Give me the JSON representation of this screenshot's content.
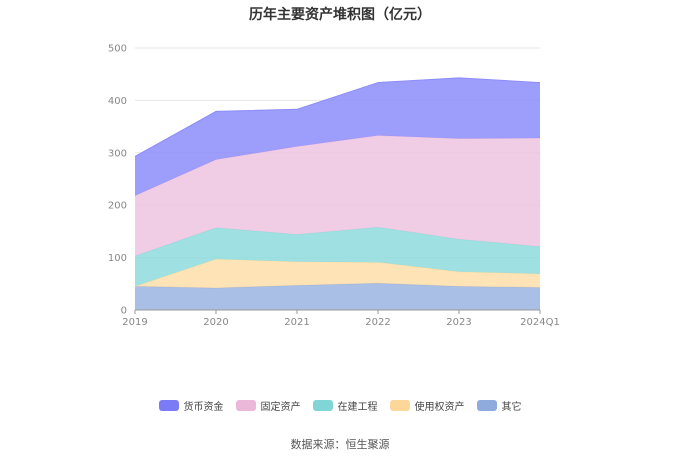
{
  "title": "历年主要资产堆积图（亿元）",
  "source": "数据来源：恒生聚源",
  "chart_data": {
    "type": "area",
    "stacked": true,
    "x": [
      "2019",
      "2020",
      "2021",
      "2022",
      "2023",
      "2024Q1"
    ],
    "ylim": [
      0,
      500
    ],
    "yticks": [
      0,
      100,
      200,
      300,
      400,
      500
    ],
    "grid": true,
    "legend_position": "bottom",
    "series": [
      {
        "name": "其它",
        "color": "#9BB4E0",
        "values": [
          45,
          42,
          47,
          51,
          45,
          43
        ]
      },
      {
        "name": "使用权资产",
        "color": "#FDDEA8",
        "values": [
          0,
          55,
          45,
          40,
          28,
          26
        ]
      },
      {
        "name": "在建工程",
        "color": "#8EDCDD",
        "values": [
          58,
          60,
          52,
          67,
          62,
          52
        ]
      },
      {
        "name": "固定资产",
        "color": "#EEC4E0",
        "values": [
          115,
          130,
          168,
          175,
          192,
          207
        ]
      },
      {
        "name": "货币资金",
        "color": "#8C8CFA",
        "values": [
          75,
          92,
          71,
          101,
          116,
          106
        ]
      }
    ]
  },
  "legend": [
    {
      "label": "货币资金",
      "color": "#7B7BF5"
    },
    {
      "label": "固定资产",
      "color": "#EBB8DA"
    },
    {
      "label": "在建工程",
      "color": "#80D6D6"
    },
    {
      "label": "使用权资产",
      "color": "#FDD79A"
    },
    {
      "label": "其它",
      "color": "#8FAADC"
    }
  ]
}
